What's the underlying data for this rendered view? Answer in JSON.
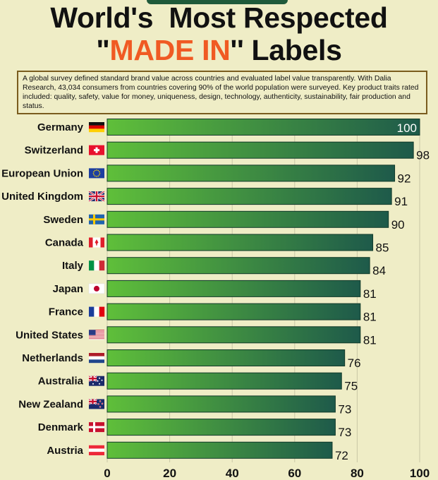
{
  "title": {
    "line1": "World's  Most Respected",
    "line2_quote_open": "\"",
    "line2_accent": "MADE IN",
    "line2_quote_close": "'' Labels"
  },
  "description": "A global survey defined standard brand value across countries and evaluated label value transparently. With Dalia Research, 43,034 consumers from countries covering 90% of the world population were surveyed. Key product traits rated included: quality, safety, value for money, uniqueness, design, technology, authenticity, sustainability, fair production and status.",
  "colors": {
    "accent": "#f05a23",
    "bar_start": "#5fbf3a",
    "bar_end": "#1e5a4a",
    "background": "#efedc6"
  },
  "chart_data": {
    "type": "bar",
    "orientation": "horizontal",
    "categories": [
      "Germany",
      "Switzerland",
      "European Union",
      "United Kingdom",
      "Sweden",
      "Canada",
      "Italy",
      "Japan",
      "France",
      "United States",
      "Netherlands",
      "Australia",
      "New Zealand",
      "Denmark",
      "Austria"
    ],
    "values": [
      100,
      98,
      92,
      91,
      90,
      85,
      84,
      81,
      81,
      81,
      76,
      75,
      73,
      73,
      72
    ],
    "flag_icons": [
      "germany-flag-icon",
      "switzerland-flag-icon",
      "eu-flag-icon",
      "uk-flag-icon",
      "sweden-flag-icon",
      "canada-flag-icon",
      "italy-flag-icon",
      "japan-flag-icon",
      "france-flag-icon",
      "usa-flag-icon",
      "netherlands-flag-icon",
      "australia-flag-icon",
      "new-zealand-flag-icon",
      "denmark-flag-icon",
      "austria-flag-icon"
    ],
    "xlim": [
      0,
      100
    ],
    "xticks": [
      0,
      20,
      40,
      60,
      80,
      100
    ],
    "xlabel": "",
    "ylabel": ""
  }
}
